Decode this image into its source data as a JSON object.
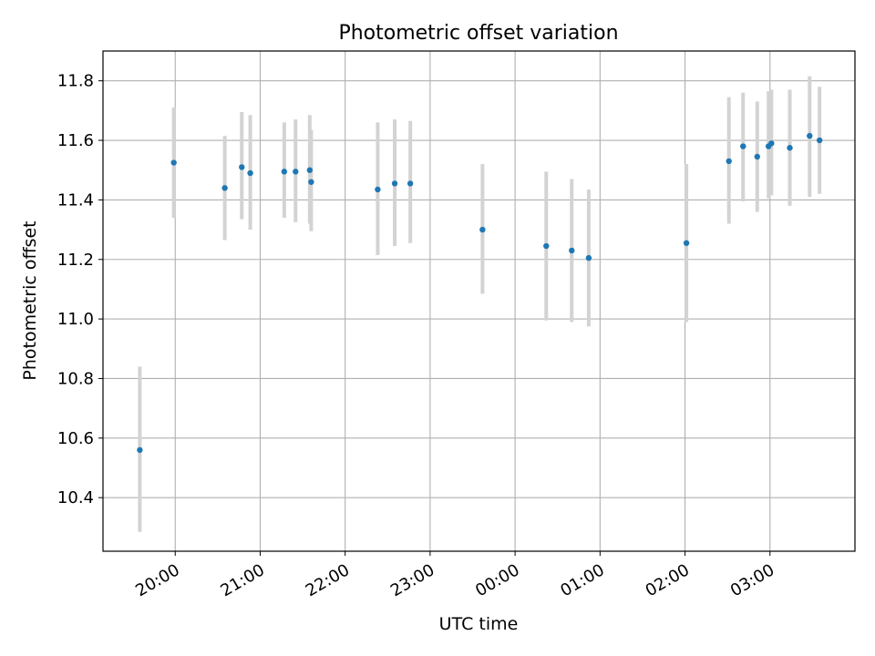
{
  "chart_data": {
    "type": "scatter",
    "title": "Photometric offset variation",
    "xlabel": "UTC time",
    "ylabel": "Photometric offset",
    "grid": true,
    "x_ticks": [
      "20:00",
      "21:00",
      "22:00",
      "23:00",
      "00:00",
      "01:00",
      "02:00",
      "03:00"
    ],
    "y_ticks": [
      "10.4",
      "10.6",
      "10.8",
      "11.0",
      "11.2",
      "11.4",
      "11.6",
      "11.8"
    ],
    "xlim": [
      "19:09",
      "04:00"
    ],
    "ylim": [
      10.22,
      11.9
    ],
    "point_color": "#1f77b4",
    "errorbar_color": "#d3d3d3",
    "points": [
      {
        "x": "19:35",
        "y": 10.56,
        "low": 10.285,
        "high": 10.84
      },
      {
        "x": "19:59",
        "y": 11.525,
        "low": 11.34,
        "high": 11.71
      },
      {
        "x": "20:35",
        "y": 11.44,
        "low": 11.265,
        "high": 11.615
      },
      {
        "x": "20:47",
        "y": 11.51,
        "low": 11.335,
        "high": 11.695
      },
      {
        "x": "20:53",
        "y": 11.49,
        "low": 11.3,
        "high": 11.685
      },
      {
        "x": "21:17",
        "y": 11.495,
        "low": 11.34,
        "high": 11.66
      },
      {
        "x": "21:25",
        "y": 11.495,
        "low": 11.325,
        "high": 11.67
      },
      {
        "x": "21:35",
        "y": 11.5,
        "low": 11.32,
        "high": 11.685
      },
      {
        "x": "21:36",
        "y": 11.46,
        "low": 11.295,
        "high": 11.635
      },
      {
        "x": "22:23",
        "y": 11.435,
        "low": 11.215,
        "high": 11.66
      },
      {
        "x": "22:35",
        "y": 11.455,
        "low": 11.245,
        "high": 11.67
      },
      {
        "x": "22:46",
        "y": 11.455,
        "low": 11.255,
        "high": 11.665
      },
      {
        "x": "23:37",
        "y": 11.3,
        "low": 11.085,
        "high": 11.52
      },
      {
        "x": "00:22",
        "y": 11.245,
        "low": 10.995,
        "high": 11.495
      },
      {
        "x": "00:40",
        "y": 11.23,
        "low": 10.99,
        "high": 11.47
      },
      {
        "x": "00:52",
        "y": 11.205,
        "low": 10.975,
        "high": 11.435
      },
      {
        "x": "02:01",
        "y": 11.255,
        "low": 10.99,
        "high": 11.52
      },
      {
        "x": "02:31",
        "y": 11.53,
        "low": 11.32,
        "high": 11.745
      },
      {
        "x": "02:41",
        "y": 11.58,
        "low": 11.395,
        "high": 11.76
      },
      {
        "x": "02:51",
        "y": 11.545,
        "low": 11.36,
        "high": 11.73
      },
      {
        "x": "02:59",
        "y": 11.58,
        "low": 11.405,
        "high": 11.765
      },
      {
        "x": "03:01",
        "y": 11.59,
        "low": 11.415,
        "high": 11.77
      },
      {
        "x": "03:14",
        "y": 11.575,
        "low": 11.38,
        "high": 11.77
      },
      {
        "x": "03:28",
        "y": 11.615,
        "low": 11.41,
        "high": 11.815
      },
      {
        "x": "03:35",
        "y": 11.6,
        "low": 11.42,
        "high": 11.78
      }
    ]
  }
}
